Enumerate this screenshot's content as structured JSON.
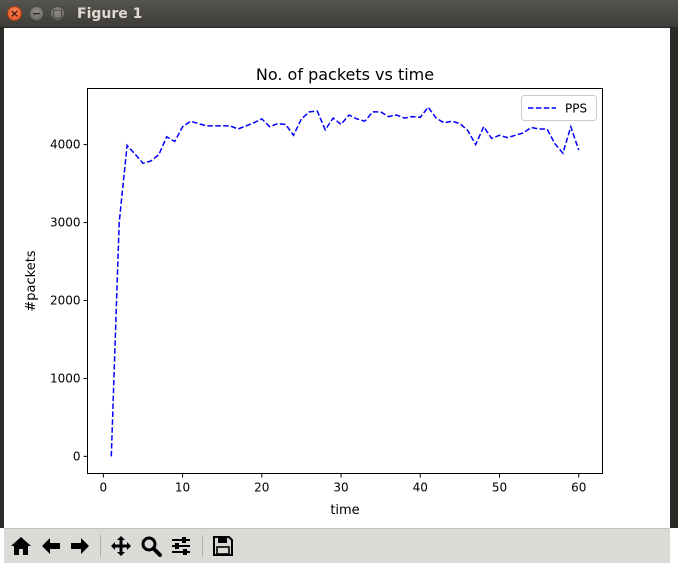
{
  "window": {
    "title": "Figure 1",
    "close_glyph": "×",
    "minimize_glyph": "−",
    "maximize_glyph": "□"
  },
  "toolbar": {
    "buttons": [
      {
        "icon": "home-icon"
      },
      {
        "icon": "arrow-left-icon"
      },
      {
        "icon": "arrow-right-icon"
      },
      {
        "icon": "move-icon"
      },
      {
        "icon": "zoom-icon"
      },
      {
        "icon": "configure-subplots-icon"
      },
      {
        "icon": "save-icon"
      }
    ]
  },
  "colors": {
    "series": "#0000ff",
    "titlebar": "#3d3c38",
    "toolbar": "#dadad6"
  },
  "chart_data": {
    "type": "line",
    "title": "No. of packets vs time",
    "xlabel": "time",
    "ylabel": "#packets",
    "xlim": [
      -2,
      63
    ],
    "ylim": [
      -220,
      4720
    ],
    "xticks": [
      0,
      10,
      20,
      30,
      40,
      50,
      60
    ],
    "yticks": [
      0,
      1000,
      2000,
      3000,
      4000
    ],
    "grid": false,
    "legend": "top-right",
    "line_style": "dashed",
    "series": [
      {
        "name": "PPS",
        "color": "#0000ff",
        "x": [
          1,
          2,
          3,
          4,
          5,
          6,
          7,
          8,
          9,
          10,
          11,
          12,
          13,
          14,
          15,
          16,
          17,
          18,
          19,
          20,
          21,
          22,
          23,
          24,
          25,
          26,
          27,
          28,
          29,
          30,
          31,
          32,
          33,
          34,
          35,
          36,
          37,
          38,
          39,
          40,
          41,
          42,
          43,
          44,
          45,
          46,
          47,
          48,
          49,
          50,
          51,
          52,
          53,
          54,
          55,
          56,
          57,
          58,
          59,
          60
        ],
        "values": [
          0,
          3000,
          3990,
          3880,
          3760,
          3790,
          3870,
          4100,
          4040,
          4230,
          4300,
          4270,
          4240,
          4240,
          4240,
          4240,
          4200,
          4240,
          4280,
          4330,
          4230,
          4270,
          4260,
          4120,
          4330,
          4420,
          4430,
          4190,
          4340,
          4260,
          4380,
          4330,
          4300,
          4420,
          4420,
          4360,
          4380,
          4340,
          4360,
          4350,
          4480,
          4340,
          4280,
          4300,
          4270,
          4180,
          4000,
          4230,
          4080,
          4120,
          4090,
          4120,
          4150,
          4220,
          4200,
          4200,
          4010,
          3890,
          4230,
          3930
        ]
      }
    ]
  }
}
